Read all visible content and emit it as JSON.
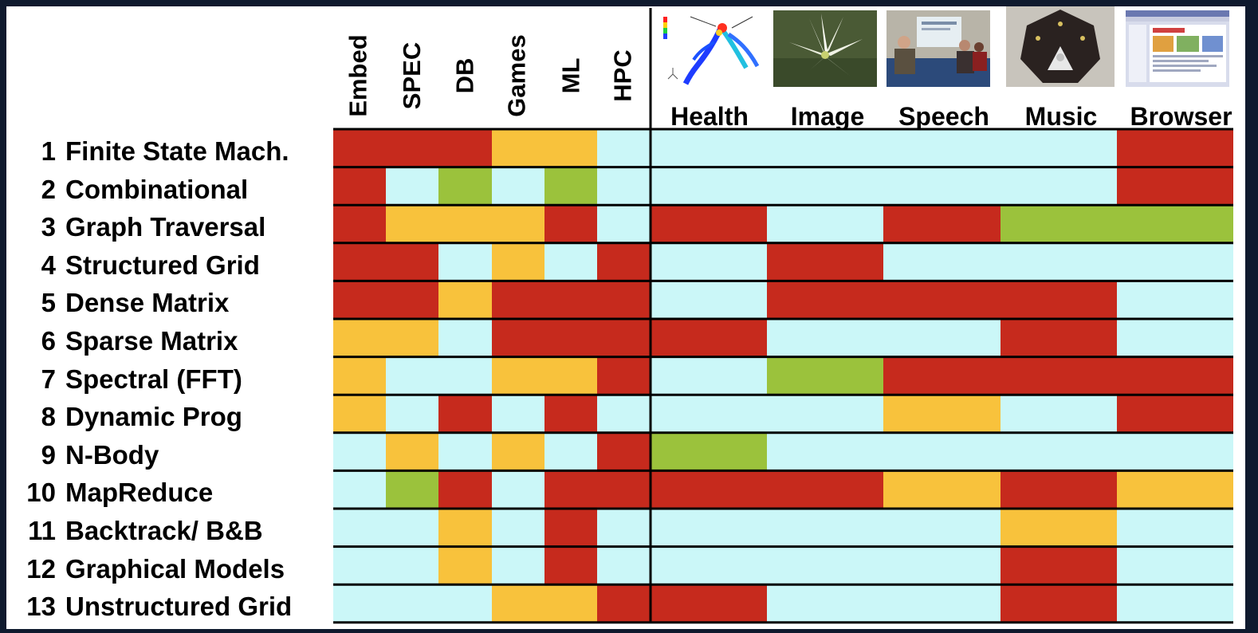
{
  "chart_data": {
    "type": "heatmap",
    "columns": [
      "Embed",
      "SPEC",
      "DB",
      "Games",
      "ML",
      "HPC",
      "Health",
      "Image",
      "Speech",
      "Music",
      "Browser"
    ],
    "rows": [
      {
        "num": "1",
        "label": "Finite State Mach."
      },
      {
        "num": "2",
        "label": "Combinational"
      },
      {
        "num": "3",
        "label": "Graph Traversal"
      },
      {
        "num": "4",
        "label": "Structured Grid"
      },
      {
        "num": "5",
        "label": "Dense Matrix"
      },
      {
        "num": "6",
        "label": "Sparse Matrix"
      },
      {
        "num": "7",
        "label": "Spectral (FFT)"
      },
      {
        "num": "8",
        "label": "Dynamic Prog"
      },
      {
        "num": "9",
        "label": "N-Body"
      },
      {
        "num": "10",
        "label": "MapReduce"
      },
      {
        "num": "11",
        "label": "Backtrack/ B&B"
      },
      {
        "num": "12",
        "label": "Graphical Models"
      },
      {
        "num": "13",
        "label": "Unstructured Grid"
      }
    ],
    "levels": {
      "R": "#c62a1d",
      "O": "#f8c23c",
      "G": "#9bc23c",
      "B": "#cbf7f8"
    },
    "matrix": [
      [
        "R",
        "R",
        "R",
        "O",
        "O",
        "B",
        "B",
        "B",
        "B",
        "B",
        "R"
      ],
      [
        "R",
        "B",
        "G",
        "B",
        "G",
        "B",
        "B",
        "B",
        "B",
        "B",
        "R"
      ],
      [
        "R",
        "O",
        "O",
        "O",
        "R",
        "B",
        "R",
        "B",
        "R",
        "G",
        "G"
      ],
      [
        "R",
        "R",
        "B",
        "O",
        "B",
        "R",
        "B",
        "R",
        "B",
        "B",
        "B"
      ],
      [
        "R",
        "R",
        "O",
        "R",
        "R",
        "R",
        "B",
        "R",
        "R",
        "R",
        "B"
      ],
      [
        "O",
        "O",
        "B",
        "R",
        "R",
        "R",
        "R",
        "B",
        "B",
        "R",
        "B"
      ],
      [
        "O",
        "B",
        "B",
        "O",
        "O",
        "R",
        "B",
        "G",
        "R",
        "R",
        "R"
      ],
      [
        "O",
        "B",
        "R",
        "B",
        "R",
        "B",
        "B",
        "B",
        "O",
        "B",
        "R"
      ],
      [
        "B",
        "O",
        "B",
        "O",
        "B",
        "R",
        "G",
        "B",
        "B",
        "B",
        "B"
      ],
      [
        "B",
        "G",
        "R",
        "B",
        "R",
        "R",
        "R",
        "R",
        "O",
        "R",
        "O"
      ],
      [
        "B",
        "B",
        "O",
        "B",
        "R",
        "B",
        "B",
        "B",
        "B",
        "O",
        "B"
      ],
      [
        "B",
        "B",
        "O",
        "B",
        "R",
        "B",
        "B",
        "B",
        "B",
        "R",
        "B"
      ],
      [
        "B",
        "B",
        "B",
        "O",
        "O",
        "R",
        "R",
        "B",
        "B",
        "R",
        "B"
      ]
    ]
  }
}
